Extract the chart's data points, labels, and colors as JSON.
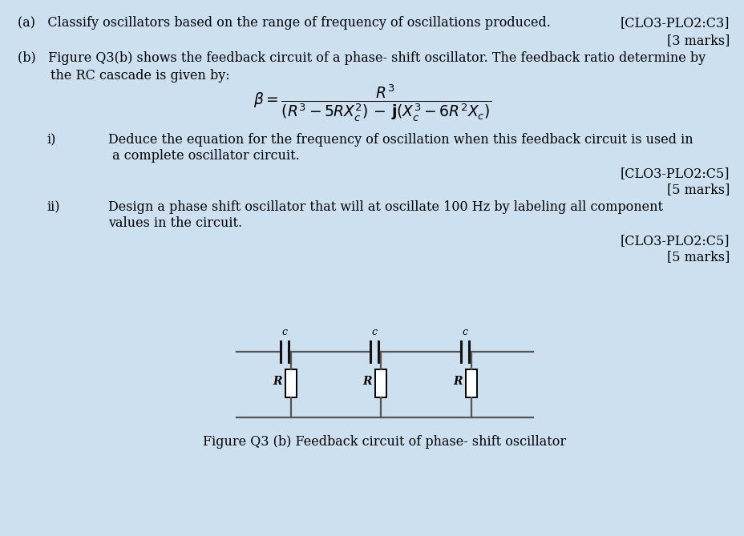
{
  "bg_color": "#cce0f0",
  "text_color": "#000000",
  "line_a": "(a)   Classify oscillators based on the range of frequency of oscillations produced.",
  "marks_a_right": "[CLO3-PLO2:C3]",
  "marks_a": "[3 marks]",
  "line_b1": "(b)   Figure Q3(b) shows the feedback circuit of a phase- shift oscillator. The feedback ratio determine by",
  "line_b2": "        the RC cascade is given by:",
  "sub_i_label": "i)",
  "sub_i_text1": "Deduce the equation for the frequency of oscillation when this feedback circuit is used in",
  "sub_i_text2": " a complete oscillator circuit.",
  "marks_i_right": "[CLO3-PLO2:C5]",
  "marks_i": "[5 marks]",
  "sub_ii_label": "ii)",
  "sub_ii_text1": "Design a phase shift oscillator that will at oscillate 100 Hz by labeling all component",
  "sub_ii_text2": "values in the circuit.",
  "marks_ii_right": "[CLO3-PLO2:C5]",
  "marks_ii": "[5 marks]",
  "fig_caption": "Figure Q3 (b) Feedback circuit of phase- shift oscillator",
  "circuit_color": "#555555",
  "formula": "$\\beta = \\dfrac{R^{3}}{(R^{3}-5RX_{c}^{2})\\,{\\bf -}\\,{\\bf j}(X_{c}^{3}-6R^{2}X_{c})}$"
}
